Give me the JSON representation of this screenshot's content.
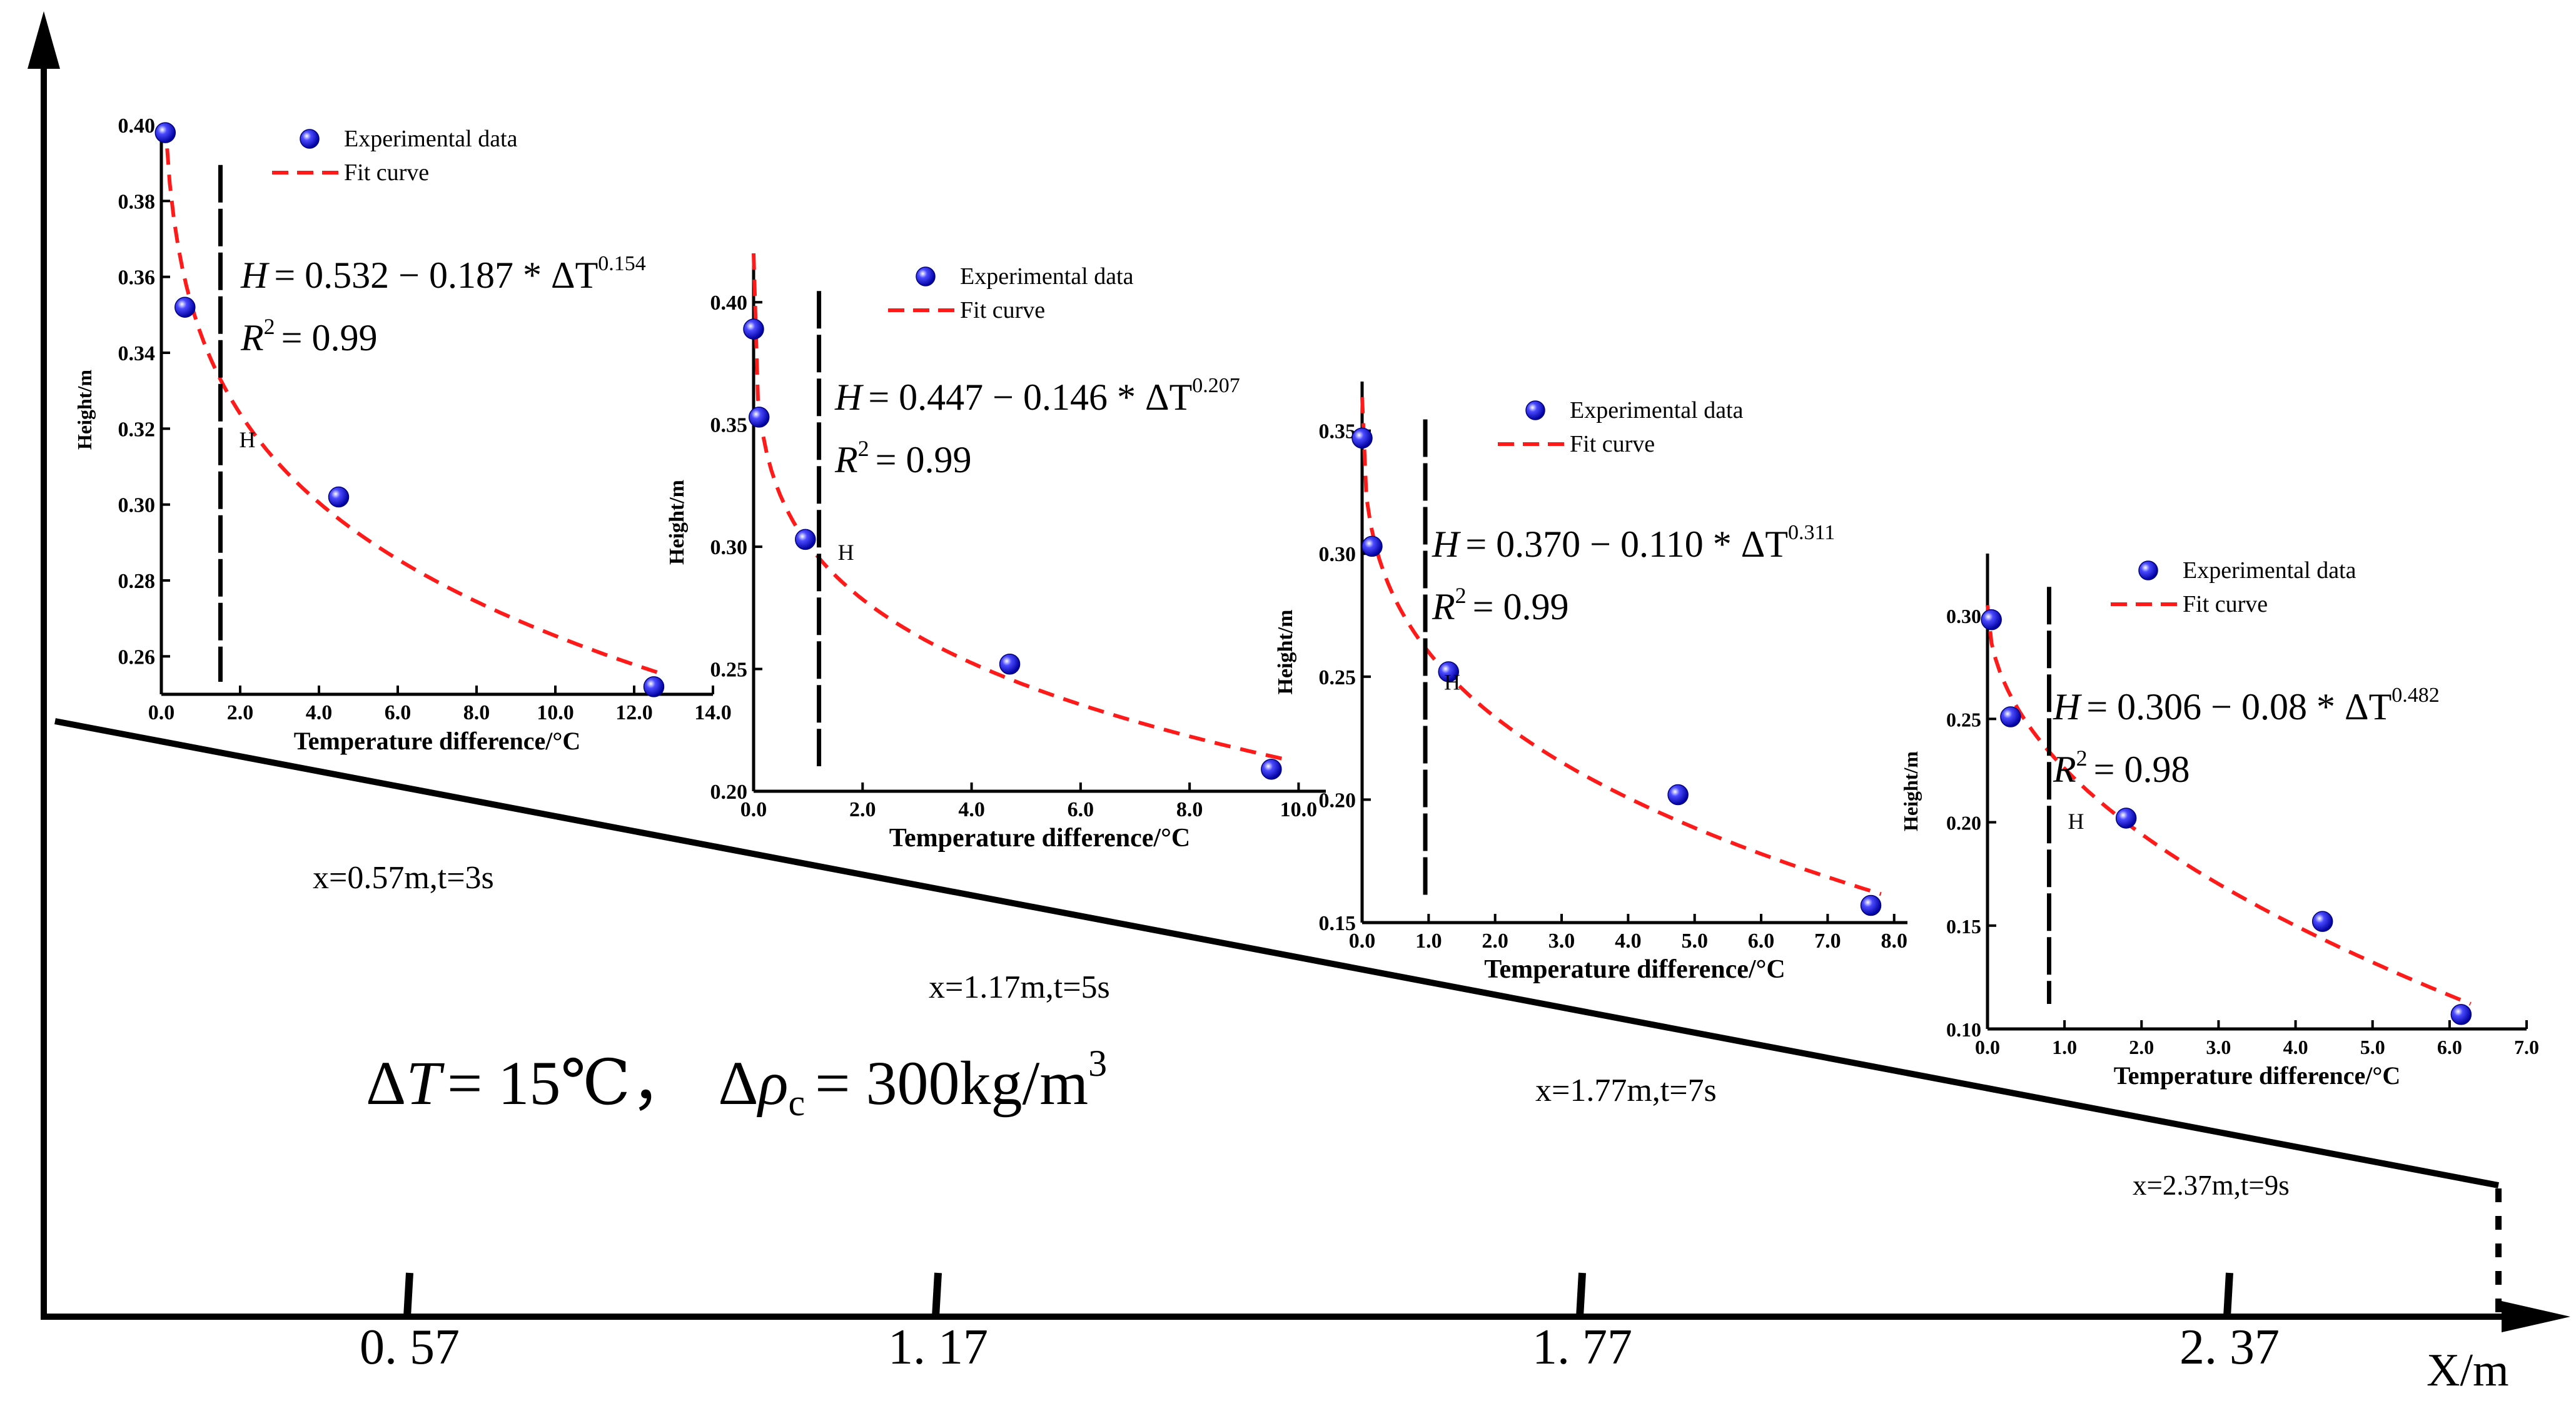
{
  "figure": {
    "main_axis": {
      "xlabel": "X/m",
      "ticks": [
        "0. 57",
        "1. 17",
        "1. 77",
        "2. 37"
      ],
      "tick_values": [
        0.57,
        1.17,
        1.77,
        2.37
      ]
    },
    "condition_text": "ΔT = 15℃， Δρc = 300kg/m³",
    "condition_parts": {
      "dT_symbol": "Δ",
      "T_symbol": "T",
      "dT_value": "= 15℃，",
      "drho_symbol": "Δ",
      "rho_symbol": "ρ",
      "rho_sub": "c",
      "rho_value": "= 300kg/m",
      "rho_unit_sup": "3"
    },
    "positions": [
      {
        "label": "x=0.57m,t=3s"
      },
      {
        "label": "x=1.17m,t=5s"
      },
      {
        "label": "x=1.77m,t=7s"
      },
      {
        "label": "x=2.37m,t=9s"
      }
    ],
    "colors": {
      "points": "#1010e0",
      "fit": "#ff1a1a",
      "axis": "#000000"
    }
  },
  "chart_data": [
    {
      "type": "scatter",
      "xlabel": "Temperature difference/°C",
      "ylabel": "Height/m",
      "xlim": [
        0,
        14
      ],
      "ylim": [
        0.25,
        0.4
      ],
      "xticks": [
        "0.0",
        "2.0",
        "4.0",
        "6.0",
        "8.0",
        "10.0",
        "12.0",
        "14.0"
      ],
      "yticks": [
        "0.26",
        "0.28",
        "0.30",
        "0.32",
        "0.34",
        "0.36",
        "0.38",
        "0.40"
      ],
      "legend": {
        "points": "Experimental data",
        "fit": "Fit curve"
      },
      "equation": {
        "lhs": "H",
        "text": "= 0.532 − 0.187 * ΔT",
        "exp": "0.154",
        "r2_label": "R",
        "r2_sup": "2",
        "r2": "= 0.99"
      },
      "fit": {
        "a": 0.532,
        "b": 0.187,
        "c": 0.154
      },
      "marker_label": "H",
      "marker_x": 1.5,
      "series": [
        {
          "name": "Experimental data",
          "x": [
            0.1,
            0.6,
            4.5,
            12.5
          ],
          "y": [
            0.398,
            0.352,
            0.302,
            0.252
          ]
        }
      ]
    },
    {
      "type": "scatter",
      "xlabel": "Temperature difference/°C",
      "ylabel": "Height/m",
      "xlim": [
        0,
        10.5
      ],
      "ylim": [
        0.2,
        0.42
      ],
      "xticks": [
        "0.0",
        "2.0",
        "4.0",
        "6.0",
        "8.0",
        "10.0"
      ],
      "yticks": [
        "0.20",
        "0.25",
        "0.30",
        "0.35",
        "0.40"
      ],
      "legend": {
        "points": "Experimental data",
        "fit": "Fit curve"
      },
      "equation": {
        "lhs": "H",
        "text": "= 0.447 − 0.146 * ΔT",
        "exp": "0.207",
        "r2_label": "R",
        "r2_sup": "2",
        "r2": "= 0.99"
      },
      "fit": {
        "a": 0.447,
        "b": 0.146,
        "c": 0.207
      },
      "marker_label": "H",
      "marker_x": 1.2,
      "series": [
        {
          "name": "Experimental data",
          "x": [
            0.0,
            0.1,
            0.95,
            4.7,
            9.5
          ],
          "y": [
            0.389,
            0.353,
            0.303,
            0.252,
            0.209
          ]
        }
      ]
    },
    {
      "type": "scatter",
      "xlabel": "Temperature difference/°C",
      "ylabel": "Height/m",
      "xlim": [
        0,
        8.2
      ],
      "ylim": [
        0.15,
        0.37
      ],
      "xticks": [
        "0.0",
        "1.0",
        "2.0",
        "3.0",
        "4.0",
        "5.0",
        "6.0",
        "7.0",
        "8.0"
      ],
      "yticks": [
        "0.15",
        "0.20",
        "0.25",
        "0.30",
        "0.35"
      ],
      "legend": {
        "points": "Experimental data",
        "fit": "Fit curve"
      },
      "equation": {
        "lhs": "H",
        "text": "= 0.370 − 0.110 * ΔT",
        "exp": "0.311",
        "r2_label": "R",
        "r2_sup": "2",
        "r2": "= 0.99"
      },
      "fit": {
        "a": 0.37,
        "b": 0.11,
        "c": 0.311
      },
      "marker_label": "H",
      "marker_x": 0.95,
      "series": [
        {
          "name": "Experimental data",
          "x": [
            0.0,
            0.15,
            1.3,
            4.75,
            7.65
          ],
          "y": [
            0.347,
            0.303,
            0.252,
            0.202,
            0.157
          ]
        }
      ]
    },
    {
      "type": "scatter",
      "xlabel": "Temperature difference/°C",
      "ylabel": "Height/m",
      "xlim": [
        0,
        7.0
      ],
      "ylim": [
        0.1,
        0.33
      ],
      "xticks": [
        "0.0",
        "1.0",
        "2.0",
        "3.0",
        "4.0",
        "5.0",
        "6.0",
        "7.0"
      ],
      "yticks": [
        "0.10",
        "0.15",
        "0.20",
        "0.25",
        "0.30"
      ],
      "legend": {
        "points": "Experimental data",
        "fit": "Fit curve"
      },
      "equation": {
        "lhs": "H",
        "text": "= 0.306 − 0.08 * ΔT",
        "exp": "0.482",
        "r2_label": "R",
        "r2_sup": "2",
        "r2": "= 0.98"
      },
      "fit": {
        "a": 0.306,
        "b": 0.08,
        "c": 0.482
      },
      "marker_label": "H",
      "marker_x": 0.8,
      "series": [
        {
          "name": "Experimental data",
          "x": [
            0.05,
            0.3,
            1.8,
            4.35,
            6.15
          ],
          "y": [
            0.298,
            0.251,
            0.202,
            0.152,
            0.107
          ]
        }
      ]
    }
  ]
}
